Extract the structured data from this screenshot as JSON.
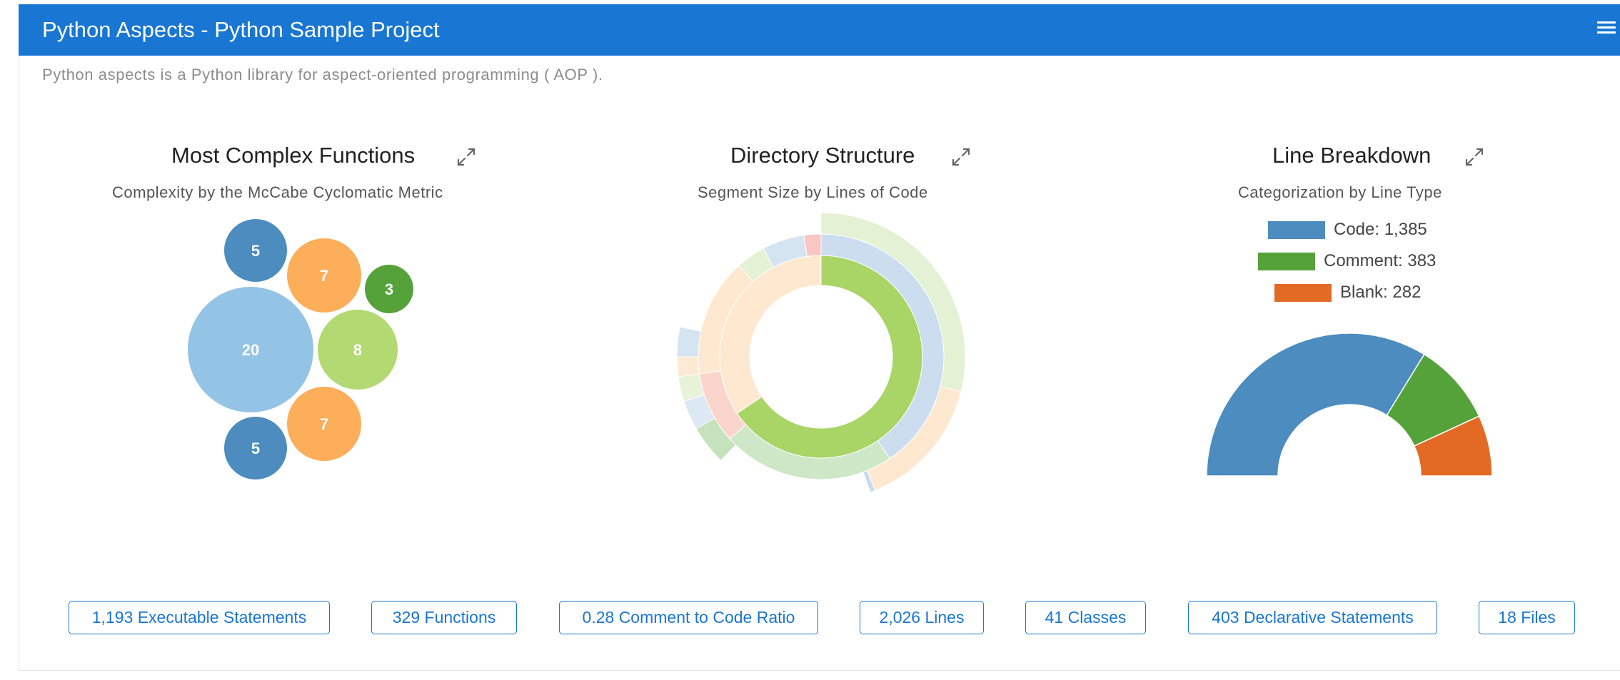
{
  "header": {
    "title": "Python Aspects - Python Sample Project",
    "menu_icon": "hamburger-menu-icon"
  },
  "description": "Python aspects is a Python library for aspect-oriented programming ( AOP ).",
  "panels": {
    "complex": {
      "title": "Most Complex Functions",
      "subtitle": "Complexity by the McCabe Cyclomatic Metric"
    },
    "directory": {
      "title": "Directory Structure",
      "subtitle": "Segment Size by Lines of Code"
    },
    "lines": {
      "title": "Line Breakdown",
      "subtitle": "Categorization by Line Type"
    }
  },
  "colors": {
    "primary": "#1976d2",
    "code": "#4c8cbf",
    "comment": "#55a23b",
    "blank": "#e36a25"
  },
  "chart_data": [
    {
      "type": "bubble",
      "title": "Most Complex Functions",
      "values": [
        5,
        7,
        3,
        20,
        8,
        7,
        5
      ]
    },
    {
      "type": "sunburst",
      "title": "Directory Structure"
    },
    {
      "type": "pie",
      "title": "Line Breakdown",
      "categories": [
        "Code",
        "Comment",
        "Blank"
      ],
      "values": [
        1385,
        383,
        282
      ],
      "legend": [
        "Code: 1,385",
        "Comment: 383",
        "Blank: 282"
      ]
    }
  ],
  "stats": [
    "1,193 Executable Statements",
    "329 Functions",
    "0.28 Comment to Code Ratio",
    "2,026 Lines",
    "41 Classes",
    "403 Declarative Statements",
    "18 Files"
  ]
}
